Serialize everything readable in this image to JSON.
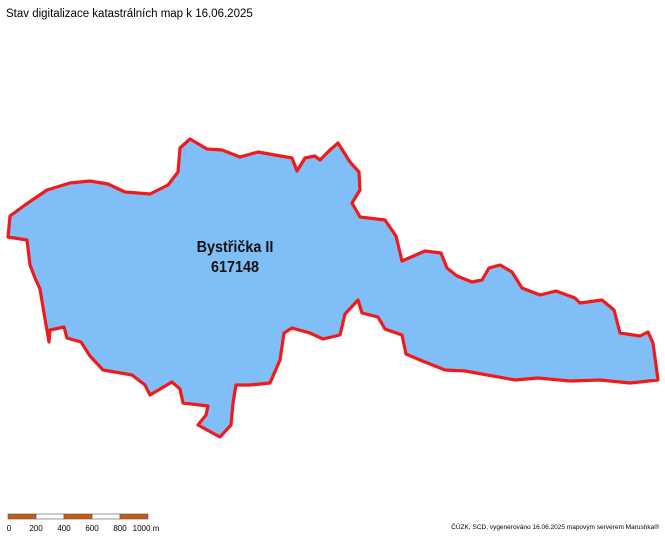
{
  "map": {
    "title": "Stav digitalizace katastrálních map k 16.06.2025",
    "territory": {
      "name": "Bystřička II",
      "code": "617148",
      "fill_color": "#80bef8",
      "border_color": "#f01a1a"
    },
    "scale": {
      "labels": [
        "0",
        "200",
        "400",
        "600",
        "800",
        "1000 m"
      ],
      "colors": [
        "#c85a14",
        "#ffffff"
      ]
    },
    "credit": "ČÚZK, SCD, vygenerováno 16.06.2025 mapovým serverem Marushka®"
  }
}
